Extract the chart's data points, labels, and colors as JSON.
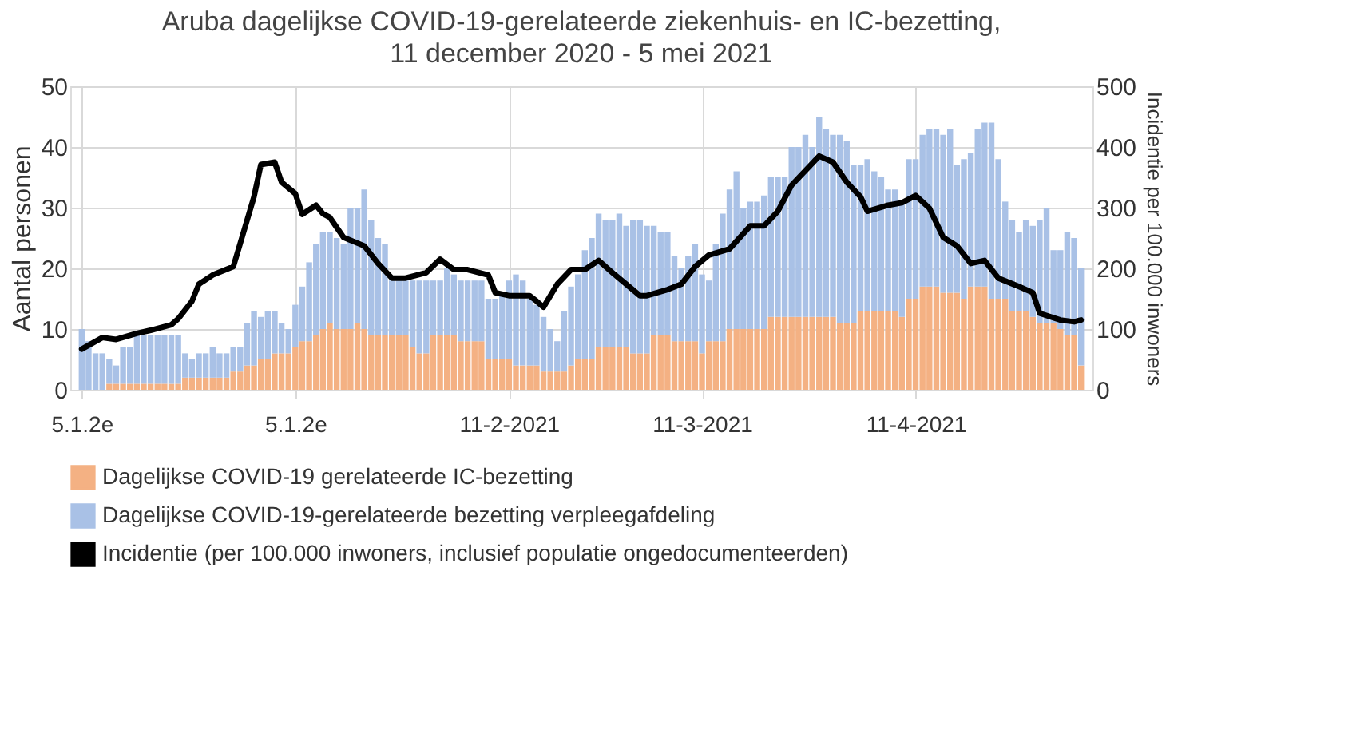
{
  "chart_data": {
    "type": "bar",
    "title": "Aruba dagelijkse COVID-19-gerelateerde ziekenhuis- en IC-bezetting,",
    "subtitle": "11 december 2020 - 5 mei 2021",
    "ylabel": "Aantal personen",
    "y2label": "Incidentie per 100.000 inwoners",
    "stacked": true,
    "grid": true,
    "legend": "bottom",
    "x": [
      "2020-12-11",
      "2020-12-12",
      "2020-12-13",
      "2020-12-14",
      "2020-12-15",
      "2020-12-16",
      "2020-12-17",
      "2020-12-18",
      "2020-12-19",
      "2020-12-20",
      "2020-12-21",
      "2020-12-22",
      "2020-12-23",
      "2020-12-24",
      "2020-12-25",
      "2020-12-26",
      "2020-12-27",
      "2020-12-28",
      "2020-12-29",
      "2020-12-30",
      "2020-12-31",
      "2021-01-01",
      "2021-01-02",
      "2021-01-03",
      "2021-01-04",
      "2021-01-05",
      "2021-01-06",
      "2021-01-07",
      "2021-01-08",
      "2021-01-09",
      "2021-01-10",
      "2021-01-11",
      "2021-01-12",
      "2021-01-13",
      "2021-01-14",
      "2021-01-15",
      "2021-01-16",
      "2021-01-17",
      "2021-01-18",
      "2021-01-19",
      "2021-01-20",
      "2021-01-21",
      "2021-01-22",
      "2021-01-23",
      "2021-01-24",
      "2021-01-25",
      "2021-01-26",
      "2021-01-27",
      "2021-01-28",
      "2021-01-29",
      "2021-01-30",
      "2021-01-31",
      "2021-02-01",
      "2021-02-02",
      "2021-02-03",
      "2021-02-04",
      "2021-02-05",
      "2021-02-06",
      "2021-02-07",
      "2021-02-08",
      "2021-02-09",
      "2021-02-10",
      "2021-02-11",
      "2021-02-12",
      "2021-02-13",
      "2021-02-14",
      "2021-02-15",
      "2021-02-16",
      "2021-02-17",
      "2021-02-18",
      "2021-02-19",
      "2021-02-20",
      "2021-02-21",
      "2021-02-22",
      "2021-02-23",
      "2021-02-24",
      "2021-02-25",
      "2021-02-26",
      "2021-02-27",
      "2021-02-28",
      "2021-03-01",
      "2021-03-02",
      "2021-03-03",
      "2021-03-04",
      "2021-03-05",
      "2021-03-06",
      "2021-03-07",
      "2021-03-08",
      "2021-03-09",
      "2021-03-10",
      "2021-03-11",
      "2021-03-12",
      "2021-03-13",
      "2021-03-14",
      "2021-03-15",
      "2021-03-16",
      "2021-03-17",
      "2021-03-18",
      "2021-03-19",
      "2021-03-20",
      "2021-03-21",
      "2021-03-22",
      "2021-03-23",
      "2021-03-24",
      "2021-03-25",
      "2021-03-26",
      "2021-03-27",
      "2021-03-28",
      "2021-03-29",
      "2021-03-30",
      "2021-03-31",
      "2021-04-01",
      "2021-04-02",
      "2021-04-03",
      "2021-04-04",
      "2021-04-05",
      "2021-04-06",
      "2021-04-07",
      "2021-04-08",
      "2021-04-09",
      "2021-04-10",
      "2021-04-11",
      "2021-04-12",
      "2021-04-13",
      "2021-04-14",
      "2021-04-15",
      "2021-04-16",
      "2021-04-17",
      "2021-04-18",
      "2021-04-19",
      "2021-04-20",
      "2021-04-21",
      "2021-04-22",
      "2021-04-23",
      "2021-04-24",
      "2021-04-25",
      "2021-04-26",
      "2021-04-27",
      "2021-04-28",
      "2021-04-29",
      "2021-04-30",
      "2021-05-01",
      "2021-05-02",
      "2021-05-03",
      "2021-05-04",
      "2021-05-05"
    ],
    "xlim": [
      "2020-12-10T12:00",
      "2021-05-05T12:00"
    ],
    "xticks": [
      {
        "value": "2020-12-11",
        "label": "5.1.2e"
      },
      {
        "value": "2021-01-11",
        "label": "5.1.2e"
      },
      {
        "value": "2021-02-11",
        "label": "11-2-2021"
      },
      {
        "value": "2021-03-11",
        "label": "11-3-2021"
      },
      {
        "value": "2021-04-11",
        "label": "11-4-2021"
      }
    ],
    "ylim": [
      0,
      50
    ],
    "yticks": [
      0,
      10,
      20,
      30,
      40,
      50
    ],
    "y2lim": [
      0,
      500
    ],
    "y2ticks": [
      0,
      100,
      200,
      300,
      400,
      500
    ],
    "series": [
      {
        "name": "Dagelijkse COVID-19 gerelateerde IC-bezetting",
        "color": "#f4b183",
        "values": [
          0,
          0,
          0,
          0,
          1,
          1,
          1,
          1,
          1,
          1,
          1,
          1,
          1,
          1,
          1,
          2,
          2,
          2,
          2,
          2,
          2,
          2,
          3,
          3,
          4,
          4,
          5,
          5,
          6,
          6,
          6,
          7,
          8,
          8,
          9,
          10,
          11,
          10,
          10,
          10,
          11,
          10,
          9,
          9,
          9,
          9,
          9,
          9,
          7,
          6,
          6,
          9,
          9,
          9,
          9,
          8,
          8,
          8,
          8,
          5,
          5,
          5,
          5,
          4,
          4,
          4,
          4,
          3,
          3,
          3,
          3,
          4,
          5,
          5,
          5,
          7,
          7,
          7,
          7,
          7,
          6,
          6,
          6,
          9,
          9,
          9,
          8,
          8,
          8,
          8,
          6,
          8,
          8,
          8,
          10,
          10,
          10,
          10,
          10,
          10,
          12,
          12,
          12,
          12,
          12,
          12,
          12,
          12,
          12,
          12,
          11,
          11,
          11,
          13,
          13,
          13,
          13,
          13,
          13,
          12,
          15,
          15,
          17,
          17,
          17,
          16,
          16,
          16,
          15,
          17,
          17,
          17,
          15,
          15,
          15,
          13,
          13,
          13,
          12,
          11,
          11,
          11,
          10,
          9,
          9,
          4
        ]
      },
      {
        "name": "Dagelijkse COVID-19-gerelateerde bezetting verpleegafdeling",
        "color": "#a9c1e6",
        "values": [
          10,
          8,
          6,
          6,
          4,
          3,
          6,
          6,
          8,
          8,
          8,
          8,
          8,
          8,
          8,
          4,
          3,
          4,
          4,
          5,
          4,
          4,
          4,
          4,
          7,
          9,
          7,
          8,
          7,
          5,
          4,
          7,
          9,
          13,
          15,
          16,
          15,
          15,
          14,
          20,
          19,
          23,
          19,
          16,
          15,
          9,
          9,
          9,
          11,
          12,
          12,
          9,
          9,
          11,
          10,
          10,
          10,
          10,
          10,
          10,
          10,
          11,
          13,
          15,
          14,
          11,
          10,
          9,
          7,
          5,
          10,
          13,
          14,
          18,
          20,
          22,
          21,
          21,
          22,
          20,
          22,
          22,
          21,
          18,
          17,
          17,
          14,
          12,
          14,
          16,
          13,
          10,
          16,
          21,
          23,
          26,
          20,
          21,
          21,
          22,
          23,
          23,
          23,
          28,
          28,
          30,
          28,
          33,
          31,
          30,
          31,
          30,
          26,
          24,
          25,
          23,
          22,
          20,
          20,
          19,
          23,
          23,
          25,
          26,
          26,
          26,
          27,
          21,
          23,
          22,
          26,
          27,
          29,
          23,
          16,
          15,
          13,
          15,
          15,
          17,
          19,
          12,
          13,
          17,
          16,
          16
        ]
      },
      {
        "name": "Incidentie (per 100.000 inwoners, inclusief populatie ongedocumenteerden)",
        "type": "line",
        "axis": "y2",
        "color": "#000000",
        "x": [
          "2020-12-11",
          "2020-12-14",
          "2020-12-16",
          "2020-12-19",
          "2020-12-21",
          "2020-12-24",
          "2020-12-25",
          "2020-12-27",
          "2020-12-28",
          "2020-12-30",
          "2021-01-02",
          "2021-01-03",
          "2021-01-05",
          "2021-01-06",
          "2021-01-08",
          "2021-01-09",
          "2021-01-11",
          "2021-01-12",
          "2021-01-14",
          "2021-01-15",
          "2021-01-16",
          "2021-01-18",
          "2021-01-21",
          "2021-01-23",
          "2021-01-25",
          "2021-01-27",
          "2021-01-30",
          "2021-02-01",
          "2021-02-03",
          "2021-02-05",
          "2021-02-08",
          "2021-02-09",
          "2021-02-11",
          "2021-02-14",
          "2021-02-15",
          "2021-02-16",
          "2021-02-18",
          "2021-02-20",
          "2021-02-22",
          "2021-02-24",
          "2021-02-26",
          "2021-02-28",
          "2021-03-02",
          "2021-03-03",
          "2021-03-06",
          "2021-03-08",
          "2021-03-10",
          "2021-03-12",
          "2021-03-15",
          "2021-03-18",
          "2021-03-20",
          "2021-03-22",
          "2021-03-24",
          "2021-03-26",
          "2021-03-28",
          "2021-03-30",
          "2021-04-01",
          "2021-04-03",
          "2021-04-04",
          "2021-04-07",
          "2021-04-09",
          "2021-04-11",
          "2021-04-13",
          "2021-04-15",
          "2021-04-17",
          "2021-04-19",
          "2021-04-21",
          "2021-04-23",
          "2021-04-26",
          "2021-04-28",
          "2021-04-29",
          "2021-05-02",
          "2021-05-04",
          "2021-05-05"
        ],
        "values": [
          67,
          86,
          83,
          93,
          98,
          107,
          117,
          146,
          174,
          189,
          203,
          241,
          318,
          371,
          375,
          342,
          323,
          289,
          304,
          290,
          284,
          251,
          237,
          208,
          184,
          184,
          193,
          215,
          198,
          198,
          189,
          160,
          155,
          155,
          146,
          136,
          174,
          198,
          198,
          213,
          193,
          174,
          155,
          155,
          165,
          174,
          203,
          222,
          232,
          270,
          270,
          294,
          337,
          361,
          385,
          375,
          342,
          318,
          294,
          304,
          308,
          320,
          299,
          251,
          237,
          208,
          213,
          184,
          170,
          160,
          126,
          115,
          112,
          115
        ]
      }
    ]
  }
}
